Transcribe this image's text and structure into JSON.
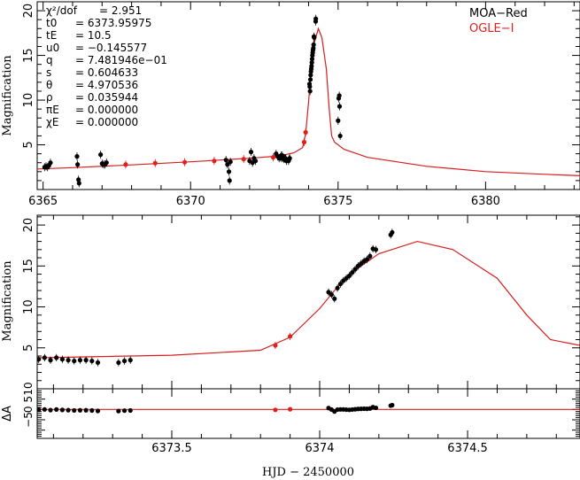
{
  "colors": {
    "moa": "#000000",
    "ogle": "#e0201c",
    "model": "#d81e1e"
  },
  "legend": {
    "moa": "MOA−Red",
    "ogle": "OGLE−I"
  },
  "params": [
    {
      "name": "χ²/dof",
      "value": "= 2.951"
    },
    {
      "name": "t0",
      "value": "= 6373.95975"
    },
    {
      "name": "tE",
      "value": "= 10.5"
    },
    {
      "name": "u0",
      "value": "= −0.145577"
    },
    {
      "name": "q",
      "value": "= 7.481946e−01"
    },
    {
      "name": "s",
      "value": "= 0.604633"
    },
    {
      "name": "θ",
      "value": "= 4.970536"
    },
    {
      "name": "ρ",
      "value": "= 0.035944"
    },
    {
      "name": "πE",
      "value": "= 0.000000"
    },
    {
      "name": "χE",
      "value": "= 0.000000"
    }
  ],
  "chart_data": [
    {
      "type": "scatter",
      "title": "",
      "ylabel": "Magnification",
      "xlim": [
        6364.8,
        6383.2
      ],
      "ylim": [
        0,
        21
      ],
      "xticks": [
        "6365",
        "6370",
        "6375",
        "6380"
      ],
      "yticks": [
        "5",
        "10",
        "15",
        "20"
      ]
    },
    {
      "type": "scatter",
      "ylabel": "Magnification",
      "xlabel": "HJD − 2450000",
      "xlim": [
        6373.045,
        6374.88
      ],
      "ylim": [
        0,
        21.2
      ],
      "xticks": [
        "6373.5",
        "6374",
        "6374.5"
      ],
      "yticks": [
        "5",
        "10",
        "15",
        "20"
      ],
      "residual": {
        "ylabel": "ΔA",
        "ylim": [
          -14,
          10
        ],
        "yticks": [
          "−5",
          "0",
          "5",
          "10"
        ]
      }
    },
    {
      "model": [
        [
          6364.8,
          2.3
        ],
        [
          6366,
          2.45
        ],
        [
          6368,
          2.75
        ],
        [
          6370,
          3.1
        ],
        [
          6372,
          3.5
        ],
        [
          6373,
          3.75
        ],
        [
          6373.5,
          4.1
        ],
        [
          6373.8,
          4.7
        ],
        [
          6373.9,
          6.3
        ],
        [
          6374.0,
          9.8
        ],
        [
          6374.05,
          12
        ],
        [
          6374.1,
          14
        ],
        [
          6374.2,
          16.5
        ],
        [
          6374.33,
          18
        ],
        [
          6374.45,
          17
        ],
        [
          6374.6,
          13.5
        ],
        [
          6374.7,
          9
        ],
        [
          6374.78,
          6
        ],
        [
          6374.88,
          5.3
        ],
        [
          6375.2,
          4.5
        ],
        [
          6376,
          3.6
        ],
        [
          6378,
          2.6
        ],
        [
          6380,
          2.0
        ],
        [
          6382,
          1.7
        ],
        [
          6383.2,
          1.55
        ]
      ],
      "moa": [
        [
          6365.05,
          2.5
        ],
        [
          6365.1,
          2.6
        ],
        [
          6365.15,
          2.5
        ],
        [
          6365.2,
          2.7
        ],
        [
          6365.25,
          3.0
        ],
        [
          6366.15,
          3.7
        ],
        [
          6366.17,
          2.8
        ],
        [
          6366.2,
          1.1
        ],
        [
          6366.22,
          0.7
        ],
        [
          6366.95,
          3.9
        ],
        [
          6367.0,
          2.9
        ],
        [
          6367.05,
          2.8
        ],
        [
          6367.1,
          2.8
        ],
        [
          6367.15,
          3.0
        ],
        [
          6371.2,
          3.3
        ],
        [
          6371.25,
          2.8
        ],
        [
          6371.3,
          2.0
        ],
        [
          6371.32,
          1.0
        ],
        [
          6371.35,
          3.1
        ],
        [
          6372.0,
          3.2
        ],
        [
          6372.05,
          4.2
        ],
        [
          6372.1,
          3.0
        ],
        [
          6372.15,
          3.5
        ],
        [
          6372.2,
          3.2
        ],
        [
          6372.9,
          4.0
        ],
        [
          6372.95,
          3.7
        ],
        [
          6373.0,
          3.5
        ],
        [
          6373.05,
          3.6
        ],
        [
          6373.07,
          3.8
        ],
        [
          6373.09,
          3.5
        ],
        [
          6373.11,
          3.8
        ],
        [
          6373.13,
          3.6
        ],
        [
          6373.15,
          3.5
        ],
        [
          6373.17,
          3.4
        ],
        [
          6373.19,
          3.5
        ],
        [
          6373.21,
          3.5
        ],
        [
          6373.23,
          3.4
        ],
        [
          6373.25,
          3.2
        ],
        [
          6373.32,
          3.2
        ],
        [
          6373.34,
          3.4
        ],
        [
          6373.36,
          3.5
        ],
        [
          6374.03,
          11.8
        ],
        [
          6374.04,
          11.5
        ],
        [
          6374.05,
          11.0
        ],
        [
          6374.06,
          12.3
        ],
        [
          6374.07,
          12.8
        ],
        [
          6374.08,
          13.2
        ],
        [
          6374.09,
          13.5
        ],
        [
          6374.1,
          13.8
        ],
        [
          6374.11,
          14.2
        ],
        [
          6374.12,
          14.6
        ],
        [
          6374.13,
          15.0
        ],
        [
          6374.14,
          15.3
        ],
        [
          6374.15,
          15.6
        ],
        [
          6374.16,
          15.8
        ],
        [
          6374.17,
          16.2
        ],
        [
          6374.18,
          17.1
        ],
        [
          6374.19,
          17.0
        ],
        [
          6374.24,
          18.8
        ],
        [
          6374.245,
          19.1
        ],
        [
          6375.0,
          7.7
        ],
        [
          6375.02,
          10.2
        ],
        [
          6375.04,
          10.5
        ],
        [
          6375.05,
          9.3
        ],
        [
          6375.07,
          6.0
        ]
      ],
      "ogle": [
        [
          6367.8,
          2.8
        ],
        [
          6368.8,
          2.95
        ],
        [
          6369.8,
          3.05
        ],
        [
          6370.8,
          3.2
        ],
        [
          6371.8,
          3.4
        ],
        [
          6372.8,
          3.6
        ],
        [
          6373.85,
          5.3
        ],
        [
          6373.9,
          6.4
        ]
      ]
    }
  ]
}
